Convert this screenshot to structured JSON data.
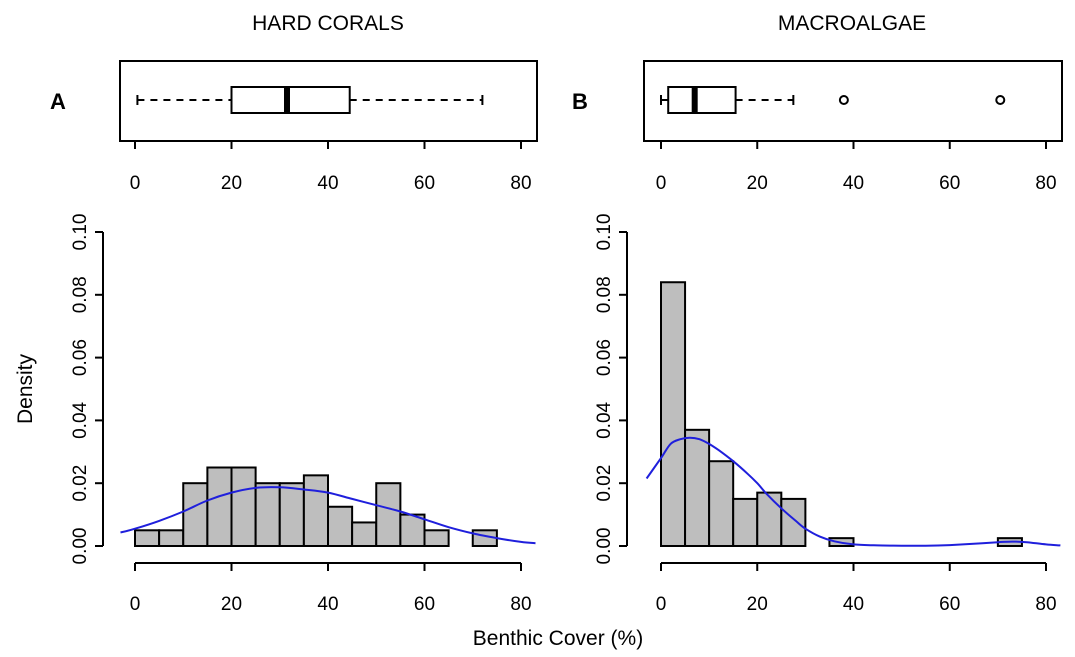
{
  "figure": {
    "xlabel": "Benthic Cover (%)",
    "ylabel": "Density",
    "colors": {
      "bars": "#bebebe",
      "density_line": "#1f1fdc",
      "outline": "#000000"
    }
  },
  "chart_data": [
    {
      "type": "boxplot",
      "panel_letter": "A",
      "title": "HARD CORALS",
      "xlim": [
        0,
        80
      ],
      "x_ticks": [
        "0",
        "20",
        "40",
        "60",
        "80"
      ],
      "stats": {
        "whisker_low": 0.5,
        "q1": 20,
        "median": 31.5,
        "q3": 44.5,
        "whisker_high": 72
      },
      "outliers": []
    },
    {
      "type": "boxplot",
      "panel_letter": "B",
      "title": "MACROALGAE",
      "xlim": [
        0,
        80
      ],
      "x_ticks": [
        "0",
        "20",
        "40",
        "60",
        "80"
      ],
      "stats": {
        "whisker_low": 0,
        "q1": 1.5,
        "median": 7,
        "q3": 15.5,
        "whisker_high": 27.5
      },
      "outliers": [
        38,
        70.5
      ]
    },
    {
      "type": "bar",
      "subtype": "histogram",
      "panel": "A",
      "bin_width": 5,
      "bins": [
        [
          0,
          5
        ],
        [
          5,
          10
        ],
        [
          10,
          15
        ],
        [
          15,
          20
        ],
        [
          20,
          25
        ],
        [
          25,
          30
        ],
        [
          30,
          35
        ],
        [
          35,
          40
        ],
        [
          40,
          45
        ],
        [
          45,
          50
        ],
        [
          50,
          55
        ],
        [
          55,
          60
        ],
        [
          60,
          65
        ],
        [
          65,
          70
        ],
        [
          70,
          75
        ]
      ],
      "values": [
        0.005,
        0.005,
        0.02,
        0.025,
        0.025,
        0.02,
        0.02,
        0.0225,
        0.0125,
        0.0075,
        0.02,
        0.01,
        0.005,
        0,
        0.005
      ],
      "ylim": [
        0,
        0.1
      ],
      "x_ticks": [
        "0",
        "20",
        "40",
        "60",
        "80"
      ],
      "y_ticks": [
        "0.00",
        "0.02",
        "0.04",
        "0.06",
        "0.08",
        "0.10"
      ],
      "density_curve": {
        "x": [
          -3,
          0,
          5,
          10,
          15,
          20,
          25,
          30,
          35,
          40,
          45,
          50,
          55,
          60,
          65,
          70,
          75,
          80,
          83
        ],
        "y": [
          0.0043,
          0.0055,
          0.008,
          0.011,
          0.0145,
          0.017,
          0.0185,
          0.0187,
          0.018,
          0.017,
          0.015,
          0.013,
          0.011,
          0.0085,
          0.006,
          0.004,
          0.0025,
          0.0013,
          0.0009
        ]
      }
    },
    {
      "type": "bar",
      "subtype": "histogram",
      "panel": "B",
      "bin_width": 5,
      "bins": [
        [
          0,
          5
        ],
        [
          5,
          10
        ],
        [
          10,
          15
        ],
        [
          15,
          20
        ],
        [
          20,
          25
        ],
        [
          25,
          30
        ],
        [
          30,
          35
        ],
        [
          35,
          40
        ],
        [
          40,
          45
        ],
        [
          45,
          50
        ],
        [
          50,
          55
        ],
        [
          55,
          60
        ],
        [
          60,
          65
        ],
        [
          65,
          70
        ],
        [
          70,
          75
        ]
      ],
      "values": [
        0.084,
        0.037,
        0.027,
        0.015,
        0.017,
        0.015,
        0,
        0.0025,
        0,
        0,
        0,
        0,
        0,
        0,
        0.0025
      ],
      "ylim": [
        0,
        0.1
      ],
      "x_ticks": [
        "0",
        "20",
        "40",
        "60",
        "80"
      ],
      "y_ticks": [
        "0.00",
        "0.02",
        "0.04",
        "0.06",
        "0.08",
        "0.10"
      ],
      "density_curve": {
        "x": [
          -3,
          0,
          2,
          4,
          6,
          8,
          10,
          12,
          15,
          18,
          20,
          22,
          25,
          28,
          30,
          33,
          36,
          40,
          45,
          50,
          55,
          60,
          65,
          70,
          73,
          76,
          80,
          83
        ],
        "y": [
          0.0215,
          0.028,
          0.0325,
          0.034,
          0.0345,
          0.034,
          0.0325,
          0.0305,
          0.027,
          0.023,
          0.02,
          0.0165,
          0.012,
          0.008,
          0.0055,
          0.003,
          0.0015,
          0.0005,
          0.0002,
          0.0001,
          0.0001,
          0.0003,
          0.0007,
          0.0012,
          0.0014,
          0.0012,
          0.0005,
          0.0002
        ]
      }
    }
  ]
}
